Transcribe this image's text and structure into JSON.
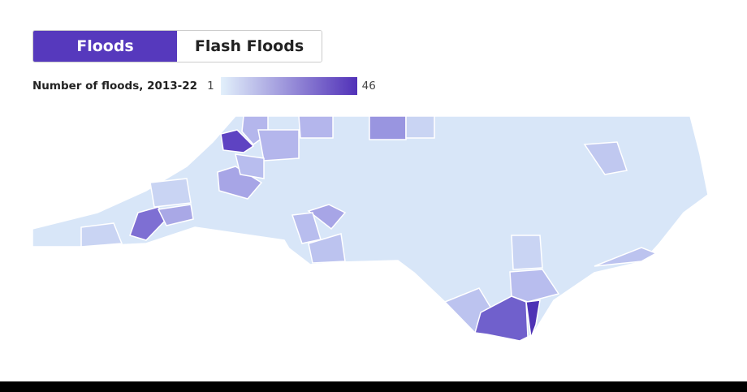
{
  "toggle": {
    "options": [
      "Floods",
      "Flash Floods"
    ],
    "selected": "Floods"
  },
  "legend": {
    "title": "Number of floods, 2013-22",
    "min": "1",
    "max": "46",
    "color_low": "#e2f0fb",
    "color_high": "#5131b8"
  },
  "map": {
    "region": "North Carolina counties",
    "border_color": "#ffffff"
  }
}
